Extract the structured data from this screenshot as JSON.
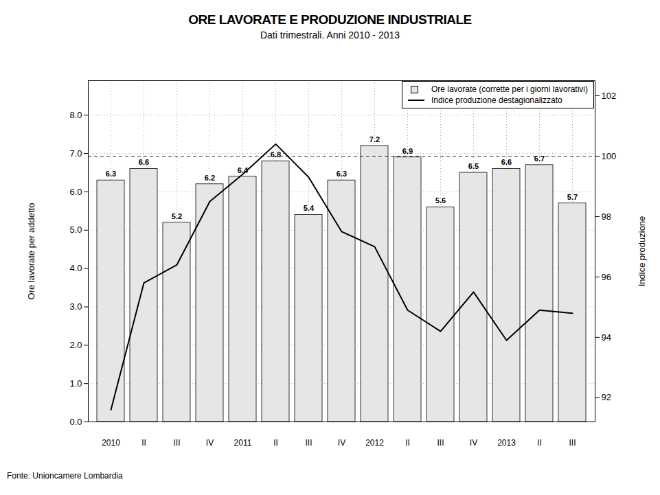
{
  "chart_data": {
    "type": "bar",
    "title": "ORE LAVORATE E PRODUZIONE INDUSTRIALE",
    "subtitle": "Dati trimestrali. Anni 2010 - 2013",
    "source": "Fonte: Unioncamere Lombardia",
    "y_label": "Ore lavorate per addetto",
    "y2_label": "Indice produzione",
    "categories": [
      "2010",
      "II",
      "III",
      "IV",
      "2011",
      "II",
      "III",
      "IV",
      "2012",
      "II",
      "III",
      "IV",
      "2013",
      "II",
      "III"
    ],
    "series": [
      {
        "name": "Ore lavorate (corrette per i giorni lavorativi)",
        "type": "bar",
        "color": "#e6e6e6",
        "data_labels": true,
        "values": [
          6.3,
          6.6,
          5.2,
          6.2,
          6.4,
          6.8,
          5.4,
          6.3,
          7.2,
          6.9,
          5.6,
          6.5,
          6.6,
          6.7,
          5.7
        ]
      },
      {
        "name": "Indice produzione destagionalizzato",
        "type": "line",
        "color": "#000000",
        "axis": "y2",
        "line_style": "solid",
        "values": [
          91.6,
          95.8,
          96.4,
          98.5,
          99.4,
          100.4,
          99.3,
          97.5,
          97.0,
          94.9,
          94.2,
          95.5,
          93.9,
          94.9,
          94.8
        ]
      }
    ],
    "ylim": [
      0,
      8.9
    ],
    "yticks": [
      0,
      1,
      2,
      3,
      4,
      5,
      6,
      7,
      8
    ],
    "y2lim": [
      91.2,
      102.5
    ],
    "y2ticks": [
      92,
      94,
      96,
      98,
      100,
      102
    ],
    "reference_line": {
      "axis": "y2",
      "value": 100,
      "line_style": "dashed"
    },
    "grid": true,
    "legend": "top-right"
  }
}
